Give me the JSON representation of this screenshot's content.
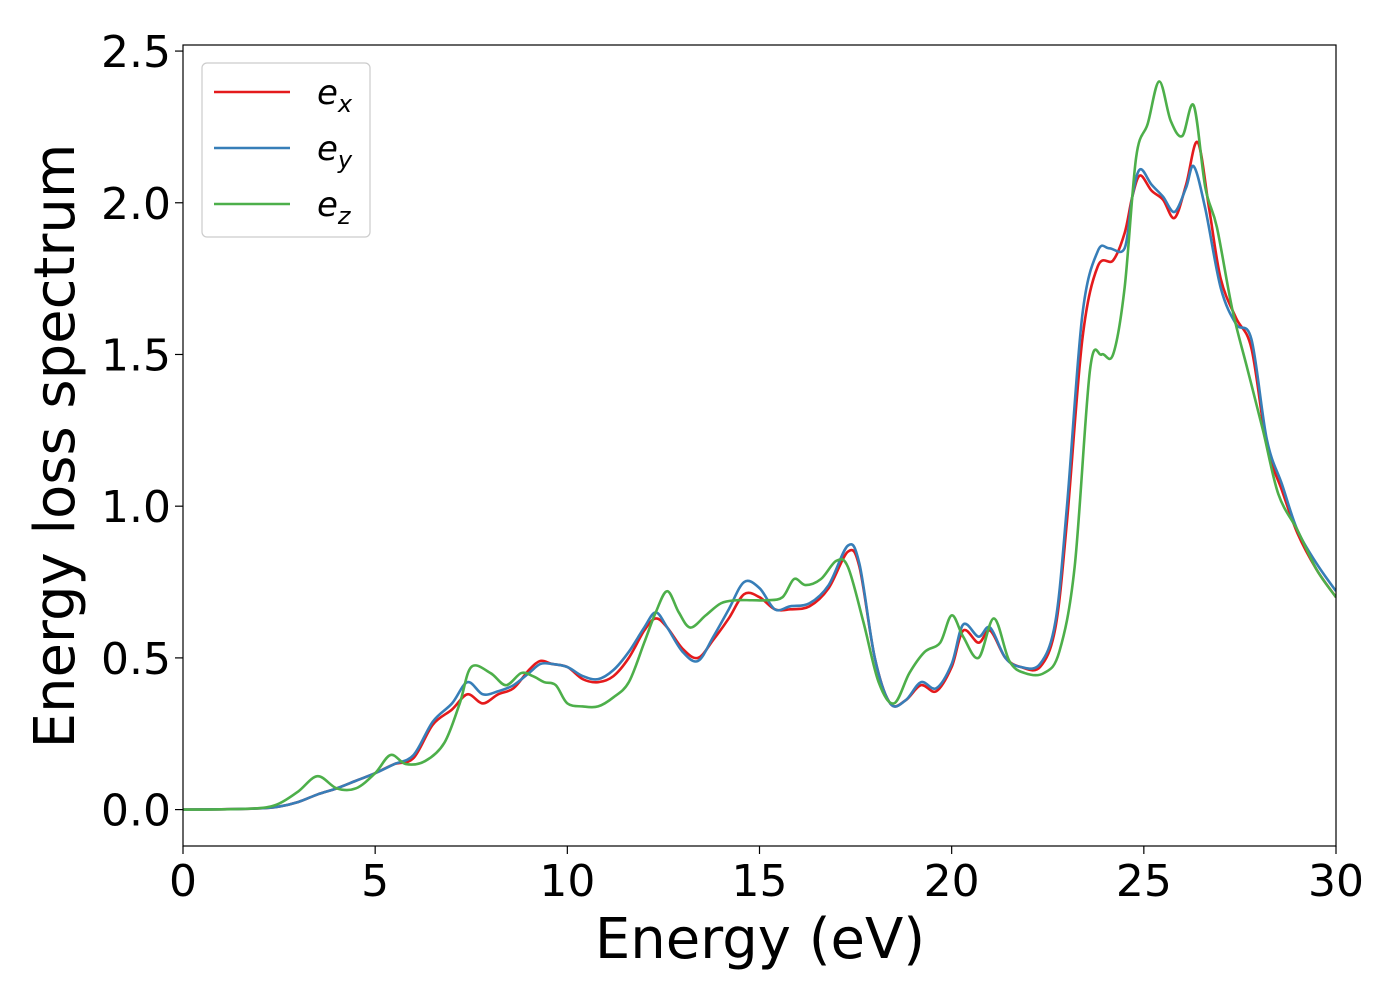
{
  "chart_data": {
    "type": "line",
    "title": "",
    "xlabel": "Energy (eV)",
    "ylabel": "Energy loss spectrum",
    "xlim": [
      0,
      30
    ],
    "ylim": [
      -0.12,
      2.52
    ],
    "xticks": [
      0,
      5,
      10,
      15,
      20,
      25,
      30
    ],
    "xtick_labels": [
      "0",
      "5",
      "10",
      "15",
      "20",
      "25",
      "30"
    ],
    "yticks": [
      0.0,
      0.5,
      1.0,
      1.5,
      2.0,
      2.5
    ],
    "ytick_labels": [
      "0.0",
      "0.5",
      "1.0",
      "1.5",
      "2.0",
      "2.5"
    ],
    "grid": false,
    "legend_position": "top-left",
    "series": [
      {
        "name": "e_x",
        "legend_base": "e",
        "legend_sub": "x",
        "color": "#e41a1c",
        "points": [
          [
            0,
            0.0
          ],
          [
            1,
            0.001
          ],
          [
            2,
            0.004
          ],
          [
            2.5,
            0.01
          ],
          [
            3,
            0.025
          ],
          [
            3.5,
            0.05
          ],
          [
            4,
            0.07
          ],
          [
            4.5,
            0.095
          ],
          [
            5,
            0.12
          ],
          [
            5.5,
            0.15
          ],
          [
            6,
            0.17
          ],
          [
            6.5,
            0.28
          ],
          [
            7,
            0.33
          ],
          [
            7.4,
            0.38
          ],
          [
            7.8,
            0.35
          ],
          [
            8.2,
            0.38
          ],
          [
            8.6,
            0.4
          ],
          [
            9,
            0.46
          ],
          [
            9.3,
            0.49
          ],
          [
            9.6,
            0.48
          ],
          [
            10,
            0.47
          ],
          [
            10.4,
            0.43
          ],
          [
            10.8,
            0.42
          ],
          [
            11.2,
            0.44
          ],
          [
            11.6,
            0.5
          ],
          [
            12,
            0.59
          ],
          [
            12.3,
            0.63
          ],
          [
            12.6,
            0.6
          ],
          [
            13,
            0.53
          ],
          [
            13.4,
            0.5
          ],
          [
            13.8,
            0.56
          ],
          [
            14.2,
            0.63
          ],
          [
            14.6,
            0.71
          ],
          [
            15,
            0.7
          ],
          [
            15.4,
            0.66
          ],
          [
            15.8,
            0.66
          ],
          [
            16.3,
            0.67
          ],
          [
            16.8,
            0.73
          ],
          [
            17.3,
            0.85
          ],
          [
            17.6,
            0.8
          ],
          [
            18,
            0.5
          ],
          [
            18.4,
            0.35
          ],
          [
            18.8,
            0.36
          ],
          [
            19.2,
            0.41
          ],
          [
            19.6,
            0.39
          ],
          [
            20,
            0.47
          ],
          [
            20.3,
            0.59
          ],
          [
            20.7,
            0.55
          ],
          [
            21,
            0.59
          ],
          [
            21.4,
            0.5
          ],
          [
            21.8,
            0.47
          ],
          [
            22.3,
            0.47
          ],
          [
            22.7,
            0.6
          ],
          [
            23,
            0.95
          ],
          [
            23.4,
            1.55
          ],
          [
            23.8,
            1.79
          ],
          [
            24.2,
            1.81
          ],
          [
            24.5,
            1.9
          ],
          [
            24.7,
            2.02
          ],
          [
            24.9,
            2.09
          ],
          [
            25.2,
            2.04
          ],
          [
            25.5,
            2.01
          ],
          [
            25.8,
            1.95
          ],
          [
            26.1,
            2.06
          ],
          [
            26.4,
            2.2
          ],
          [
            26.7,
            1.98
          ],
          [
            27,
            1.75
          ],
          [
            27.4,
            1.62
          ],
          [
            27.8,
            1.52
          ],
          [
            28.2,
            1.2
          ],
          [
            28.6,
            1.05
          ],
          [
            29,
            0.91
          ],
          [
            29.5,
            0.79
          ],
          [
            30,
            0.7
          ]
        ]
      },
      {
        "name": "e_y",
        "legend_base": "e",
        "legend_sub": "y",
        "color": "#377eb8",
        "points": [
          [
            0,
            0.0
          ],
          [
            1,
            0.001
          ],
          [
            2,
            0.004
          ],
          [
            2.5,
            0.01
          ],
          [
            3,
            0.025
          ],
          [
            3.5,
            0.05
          ],
          [
            4,
            0.07
          ],
          [
            4.5,
            0.095
          ],
          [
            5,
            0.12
          ],
          [
            5.5,
            0.15
          ],
          [
            6,
            0.18
          ],
          [
            6.5,
            0.29
          ],
          [
            7,
            0.35
          ],
          [
            7.4,
            0.42
          ],
          [
            7.8,
            0.38
          ],
          [
            8.2,
            0.39
          ],
          [
            8.6,
            0.41
          ],
          [
            9,
            0.45
          ],
          [
            9.3,
            0.48
          ],
          [
            9.6,
            0.48
          ],
          [
            10,
            0.47
          ],
          [
            10.4,
            0.44
          ],
          [
            10.8,
            0.43
          ],
          [
            11.2,
            0.46
          ],
          [
            11.6,
            0.52
          ],
          [
            12,
            0.6
          ],
          [
            12.3,
            0.65
          ],
          [
            12.6,
            0.6
          ],
          [
            13,
            0.52
          ],
          [
            13.4,
            0.49
          ],
          [
            13.8,
            0.57
          ],
          [
            14.2,
            0.66
          ],
          [
            14.6,
            0.75
          ],
          [
            15,
            0.73
          ],
          [
            15.4,
            0.66
          ],
          [
            15.8,
            0.67
          ],
          [
            16.3,
            0.68
          ],
          [
            16.8,
            0.74
          ],
          [
            17.3,
            0.87
          ],
          [
            17.6,
            0.81
          ],
          [
            18,
            0.5
          ],
          [
            18.4,
            0.35
          ],
          [
            18.8,
            0.36
          ],
          [
            19.2,
            0.42
          ],
          [
            19.6,
            0.4
          ],
          [
            20,
            0.48
          ],
          [
            20.3,
            0.61
          ],
          [
            20.7,
            0.57
          ],
          [
            21,
            0.6
          ],
          [
            21.4,
            0.5
          ],
          [
            21.8,
            0.47
          ],
          [
            22.3,
            0.48
          ],
          [
            22.7,
            0.62
          ],
          [
            23,
            1.0
          ],
          [
            23.4,
            1.63
          ],
          [
            23.8,
            1.84
          ],
          [
            24.1,
            1.85
          ],
          [
            24.5,
            1.85
          ],
          [
            24.7,
            2.02
          ],
          [
            24.9,
            2.11
          ],
          [
            25.2,
            2.06
          ],
          [
            25.5,
            2.02
          ],
          [
            25.8,
            1.97
          ],
          [
            26.1,
            2.05
          ],
          [
            26.3,
            2.12
          ],
          [
            26.6,
            1.98
          ],
          [
            27,
            1.72
          ],
          [
            27.4,
            1.6
          ],
          [
            27.8,
            1.55
          ],
          [
            28.2,
            1.22
          ],
          [
            28.6,
            1.07
          ],
          [
            29,
            0.92
          ],
          [
            29.5,
            0.81
          ],
          [
            30,
            0.72
          ]
        ]
      },
      {
        "name": "e_z",
        "legend_base": "e",
        "legend_sub": "z",
        "color": "#4daf4a",
        "points": [
          [
            0,
            0.0
          ],
          [
            1,
            0.001
          ],
          [
            2,
            0.005
          ],
          [
            2.5,
            0.02
          ],
          [
            3,
            0.06
          ],
          [
            3.5,
            0.11
          ],
          [
            4,
            0.07
          ],
          [
            4.5,
            0.07
          ],
          [
            5,
            0.12
          ],
          [
            5.4,
            0.18
          ],
          [
            5.8,
            0.15
          ],
          [
            6.3,
            0.16
          ],
          [
            6.8,
            0.22
          ],
          [
            7.2,
            0.35
          ],
          [
            7.5,
            0.47
          ],
          [
            8,
            0.45
          ],
          [
            8.4,
            0.41
          ],
          [
            8.8,
            0.45
          ],
          [
            9.1,
            0.44
          ],
          [
            9.4,
            0.42
          ],
          [
            9.7,
            0.41
          ],
          [
            10,
            0.35
          ],
          [
            10.4,
            0.34
          ],
          [
            10.8,
            0.34
          ],
          [
            11.2,
            0.37
          ],
          [
            11.6,
            0.42
          ],
          [
            12,
            0.55
          ],
          [
            12.3,
            0.65
          ],
          [
            12.6,
            0.72
          ],
          [
            12.9,
            0.65
          ],
          [
            13.2,
            0.6
          ],
          [
            13.6,
            0.64
          ],
          [
            14,
            0.68
          ],
          [
            14.4,
            0.69
          ],
          [
            14.8,
            0.69
          ],
          [
            15.2,
            0.69
          ],
          [
            15.6,
            0.7
          ],
          [
            15.9,
            0.76
          ],
          [
            16.2,
            0.74
          ],
          [
            16.6,
            0.76
          ],
          [
            17,
            0.82
          ],
          [
            17.3,
            0.8
          ],
          [
            17.7,
            0.62
          ],
          [
            18.1,
            0.42
          ],
          [
            18.5,
            0.35
          ],
          [
            18.9,
            0.45
          ],
          [
            19.3,
            0.52
          ],
          [
            19.7,
            0.55
          ],
          [
            20,
            0.64
          ],
          [
            20.3,
            0.57
          ],
          [
            20.7,
            0.5
          ],
          [
            21.1,
            0.63
          ],
          [
            21.5,
            0.49
          ],
          [
            21.9,
            0.45
          ],
          [
            22.4,
            0.45
          ],
          [
            22.8,
            0.52
          ],
          [
            23.2,
            0.8
          ],
          [
            23.6,
            1.45
          ],
          [
            23.9,
            1.5
          ],
          [
            24.2,
            1.5
          ],
          [
            24.5,
            1.72
          ],
          [
            24.8,
            2.15
          ],
          [
            25.1,
            2.26
          ],
          [
            25.4,
            2.4
          ],
          [
            25.7,
            2.27
          ],
          [
            26,
            2.22
          ],
          [
            26.3,
            2.32
          ],
          [
            26.6,
            2.05
          ],
          [
            26.9,
            1.92
          ],
          [
            27.3,
            1.65
          ],
          [
            27.7,
            1.45
          ],
          [
            28.1,
            1.25
          ],
          [
            28.5,
            1.04
          ],
          [
            29,
            0.92
          ],
          [
            29.5,
            0.79
          ],
          [
            30,
            0.7
          ]
        ]
      }
    ]
  }
}
